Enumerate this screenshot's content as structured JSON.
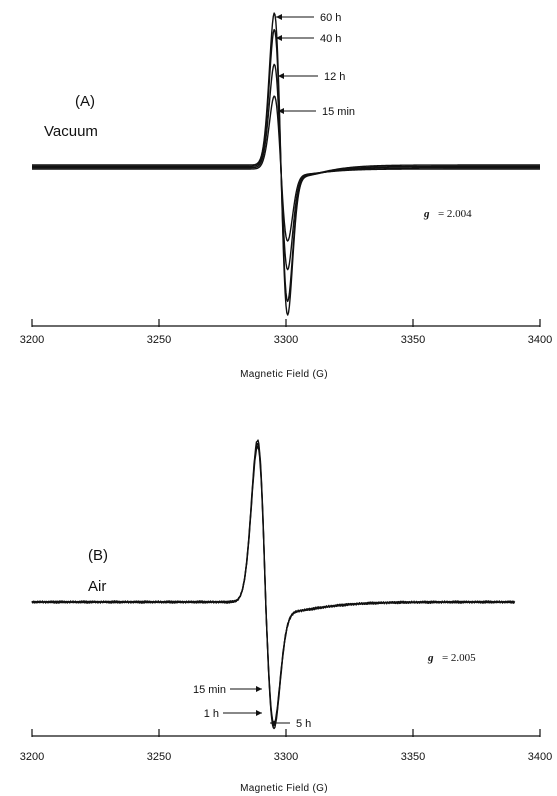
{
  "chart_data": [
    {
      "type": "line",
      "panel_label": "(A)",
      "condition": "Vacuum",
      "xlabel": "Magnetic Field (G)",
      "ylabel": "",
      "xlim": [
        3200,
        3400
      ],
      "xticks": [
        3200,
        3250,
        3300,
        3350,
        3400
      ],
      "g_symbol": "g",
      "g_value": "= 2.004",
      "series": [
        {
          "name": "60 h",
          "amplitude": 1.0,
          "center": 3298,
          "width": 2.6,
          "tail": 7
        },
        {
          "name": "40 h",
          "amplitude": 0.9,
          "center": 3298,
          "width": 2.6,
          "tail": 7
        },
        {
          "name": "12 h",
          "amplitude": 0.68,
          "center": 3298,
          "width": 2.6,
          "tail": 7
        },
        {
          "name": "15 min",
          "amplitude": 0.48,
          "center": 3298,
          "width": 2.6,
          "tail": 7
        }
      ]
    },
    {
      "type": "line",
      "panel_label": "(B)",
      "condition": "Air",
      "xlabel": "Magnetic Field (G)",
      "ylabel": "",
      "xlim": [
        3200,
        3400
      ],
      "xticks": [
        3200,
        3250,
        3300,
        3350,
        3400
      ],
      "g_symbol": "g",
      "g_value": "= 2.005",
      "series": [
        {
          "name": "15 min",
          "amplitude": 0.96,
          "center": 3292,
          "width": 3.2,
          "tail": 9
        },
        {
          "name": "1 h",
          "amplitude": 0.98,
          "center": 3292,
          "width": 3.2,
          "tail": 9
        },
        {
          "name": "5 h",
          "amplitude": 1.0,
          "center": 3292,
          "width": 3.2,
          "tail": 9
        }
      ]
    }
  ]
}
